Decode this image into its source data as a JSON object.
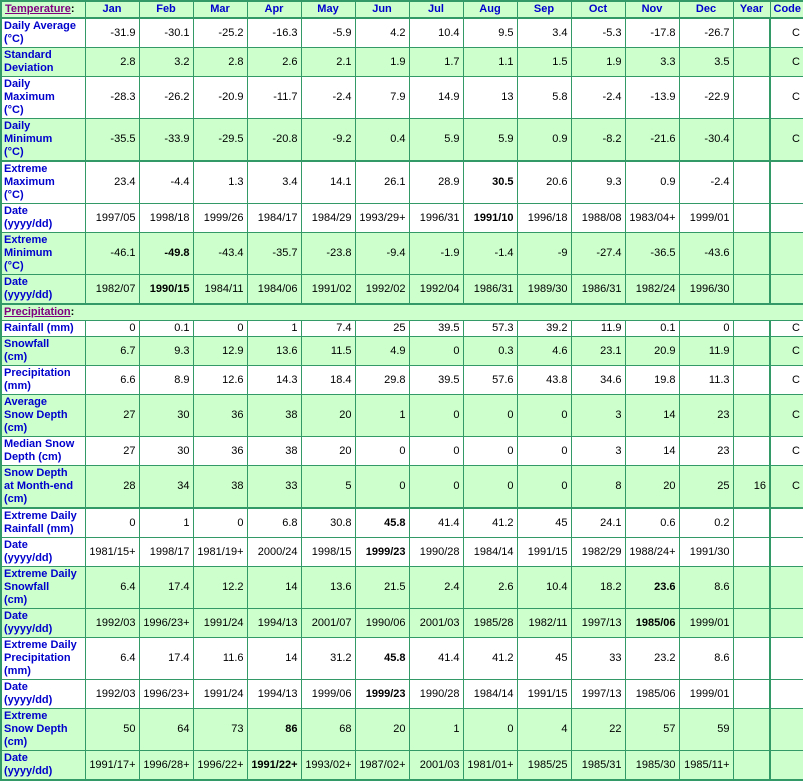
{
  "sections": {
    "temperature": {
      "title": "Temperature"
    },
    "precipitation": {
      "title": "Precipitation"
    },
    "colon": ":"
  },
  "header": {
    "months": [
      "Jan",
      "Feb",
      "Mar",
      "Apr",
      "May",
      "Jun",
      "Jul",
      "Aug",
      "Sep",
      "Oct",
      "Nov",
      "Dec"
    ],
    "year": "Year",
    "code": "Code"
  },
  "colors": {
    "cell_green": "#ccffcc",
    "border_green": "#339966",
    "label_blue": "#0000cc",
    "section_purple": "#800080"
  },
  "rows": [
    {
      "label": "Daily Average\n(°C)",
      "values": [
        "-31.9",
        "-30.1",
        "-25.2",
        "-16.3",
        "-5.9",
        "4.2",
        "10.4",
        "9.5",
        "3.4",
        "-5.3",
        "-17.8",
        "-26.7"
      ],
      "year": "",
      "code": "C",
      "shade": "w",
      "bold_col": -1,
      "thick_top": false
    },
    {
      "label": "Standard\nDeviation",
      "values": [
        "2.8",
        "3.2",
        "2.8",
        "2.6",
        "2.1",
        "1.9",
        "1.7",
        "1.1",
        "1.5",
        "1.9",
        "3.3",
        "3.5"
      ],
      "year": "",
      "code": "C",
      "shade": "g",
      "bold_col": -1,
      "thick_top": false
    },
    {
      "label": "Daily\nMaximum\n(°C)",
      "values": [
        "-28.3",
        "-26.2",
        "-20.9",
        "-11.7",
        "-2.4",
        "7.9",
        "14.9",
        "13",
        "5.8",
        "-2.4",
        "-13.9",
        "-22.9"
      ],
      "year": "",
      "code": "C",
      "shade": "w",
      "bold_col": -1,
      "thick_top": false
    },
    {
      "label": "Daily\nMinimum\n(°C)",
      "values": [
        "-35.5",
        "-33.9",
        "-29.5",
        "-20.8",
        "-9.2",
        "0.4",
        "5.9",
        "5.9",
        "0.9",
        "-8.2",
        "-21.6",
        "-30.4"
      ],
      "year": "",
      "code": "C",
      "shade": "g",
      "bold_col": -1,
      "thick_top": false
    },
    {
      "label": "Extreme\nMaximum\n(°C)",
      "values": [
        "23.4",
        "-4.4",
        "1.3",
        "3.4",
        "14.1",
        "26.1",
        "28.9",
        "30.5",
        "20.6",
        "9.3",
        "0.9",
        "-2.4"
      ],
      "year": "",
      "code": "",
      "shade": "w",
      "bold_col": 7,
      "thick_top": true
    },
    {
      "label": "Date\n(yyyy/dd)",
      "values": [
        "1997/05",
        "1998/18",
        "1999/26",
        "1984/17",
        "1984/29",
        "1993/29+",
        "1996/31",
        "1991/10",
        "1996/18",
        "1988/08",
        "1983/04+",
        "1999/01"
      ],
      "year": "",
      "code": "",
      "shade": "w",
      "bold_col": 7,
      "thick_top": false
    },
    {
      "label": "Extreme\nMinimum\n(°C)",
      "values": [
        "-46.1",
        "-49.8",
        "-43.4",
        "-35.7",
        "-23.8",
        "-9.4",
        "-1.9",
        "-1.4",
        "-9",
        "-27.4",
        "-36.5",
        "-43.6"
      ],
      "year": "",
      "code": "",
      "shade": "g",
      "bold_col": 1,
      "thick_top": false
    },
    {
      "label": "Date\n(yyyy/dd)",
      "values": [
        "1982/07",
        "1990/15",
        "1984/11",
        "1984/06",
        "1991/02",
        "1992/02",
        "1992/04",
        "1986/31",
        "1989/30",
        "1986/31",
        "1982/24",
        "1996/30"
      ],
      "year": "",
      "code": "",
      "shade": "g",
      "bold_col": 1,
      "thick_top": false
    },
    {
      "type": "section_header",
      "section": "precipitation"
    },
    {
      "label": "Rainfall (mm)",
      "values": [
        "0",
        "0.1",
        "0",
        "1",
        "7.4",
        "25",
        "39.5",
        "57.3",
        "39.2",
        "11.9",
        "0.1",
        "0"
      ],
      "year": "",
      "code": "C",
      "shade": "w",
      "bold_col": -1,
      "thick_top": false
    },
    {
      "label": "Snowfall\n(cm)",
      "values": [
        "6.7",
        "9.3",
        "12.9",
        "13.6",
        "11.5",
        "4.9",
        "0",
        "0.3",
        "4.6",
        "23.1",
        "20.9",
        "11.9"
      ],
      "year": "",
      "code": "C",
      "shade": "g",
      "bold_col": -1,
      "thick_top": false
    },
    {
      "label": "Precipitation\n(mm)",
      "values": [
        "6.6",
        "8.9",
        "12.6",
        "14.3",
        "18.4",
        "29.8",
        "39.5",
        "57.6",
        "43.8",
        "34.6",
        "19.8",
        "11.3"
      ],
      "year": "",
      "code": "C",
      "shade": "w",
      "bold_col": -1,
      "thick_top": false
    },
    {
      "label": "Average\nSnow Depth\n(cm)",
      "values": [
        "27",
        "30",
        "36",
        "38",
        "20",
        "1",
        "0",
        "0",
        "0",
        "3",
        "14",
        "23"
      ],
      "year": "",
      "code": "C",
      "shade": "g",
      "bold_col": -1,
      "thick_top": false
    },
    {
      "label": "Median Snow\nDepth (cm)",
      "values": [
        "27",
        "30",
        "36",
        "38",
        "20",
        "0",
        "0",
        "0",
        "0",
        "3",
        "14",
        "23"
      ],
      "year": "",
      "code": "C",
      "shade": "w",
      "bold_col": -1,
      "thick_top": false
    },
    {
      "label": "Snow Depth\nat Month-end\n(cm)",
      "values": [
        "28",
        "34",
        "38",
        "33",
        "5",
        "0",
        "0",
        "0",
        "0",
        "8",
        "20",
        "25"
      ],
      "year": "16",
      "code": "C",
      "shade": "g",
      "bold_col": -1,
      "thick_top": false
    },
    {
      "label": "Extreme Daily\nRainfall (mm)",
      "values": [
        "0",
        "1",
        "0",
        "6.8",
        "30.8",
        "45.8",
        "41.4",
        "41.2",
        "45",
        "24.1",
        "0.6",
        "0.2"
      ],
      "year": "",
      "code": "",
      "shade": "w",
      "bold_col": 5,
      "thick_top": true
    },
    {
      "label": "Date\n(yyyy/dd)",
      "values": [
        "1981/15+",
        "1998/17",
        "1981/19+",
        "2000/24",
        "1998/15",
        "1999/23",
        "1990/28",
        "1984/14",
        "1991/15",
        "1982/29",
        "1988/24+",
        "1991/30"
      ],
      "year": "",
      "code": "",
      "shade": "w",
      "bold_col": 5,
      "thick_top": false
    },
    {
      "label": "Extreme Daily\nSnowfall\n(cm)",
      "values": [
        "6.4",
        "17.4",
        "12.2",
        "14",
        "13.6",
        "21.5",
        "2.4",
        "2.6",
        "10.4",
        "18.2",
        "23.6",
        "8.6"
      ],
      "year": "",
      "code": "",
      "shade": "g",
      "bold_col": 10,
      "thick_top": false
    },
    {
      "label": "Date\n(yyyy/dd)",
      "values": [
        "1992/03",
        "1996/23+",
        "1991/24",
        "1994/13",
        "2001/07",
        "1990/06",
        "2001/03",
        "1985/28",
        "1982/11",
        "1997/13",
        "1985/06",
        "1999/01"
      ],
      "year": "",
      "code": "",
      "shade": "g",
      "bold_col": 10,
      "thick_top": false
    },
    {
      "label": "Extreme Daily\nPrecipitation\n(mm)",
      "values": [
        "6.4",
        "17.4",
        "11.6",
        "14",
        "31.2",
        "45.8",
        "41.4",
        "41.2",
        "45",
        "33",
        "23.2",
        "8.6"
      ],
      "year": "",
      "code": "",
      "shade": "w",
      "bold_col": 5,
      "thick_top": false
    },
    {
      "label": "Date\n(yyyy/dd)",
      "values": [
        "1992/03",
        "1996/23+",
        "1991/24",
        "1994/13",
        "1999/06",
        "1999/23",
        "1990/28",
        "1984/14",
        "1991/15",
        "1997/13",
        "1985/06",
        "1999/01"
      ],
      "year": "",
      "code": "",
      "shade": "w",
      "bold_col": 5,
      "thick_top": false
    },
    {
      "label": "Extreme\nSnow Depth\n(cm)",
      "values": [
        "50",
        "64",
        "73",
        "86",
        "68",
        "20",
        "1",
        "0",
        "4",
        "22",
        "57",
        "59"
      ],
      "year": "",
      "code": "",
      "shade": "g",
      "bold_col": 3,
      "thick_top": false
    },
    {
      "label": "Date\n(yyyy/dd)",
      "values": [
        "1991/17+",
        "1996/28+",
        "1996/22+",
        "1991/22+",
        "1993/02+",
        "1987/02+",
        "2001/03",
        "1981/01+",
        "1985/25",
        "1985/31",
        "1985/30",
        "1985/11+"
      ],
      "year": "",
      "code": "",
      "shade": "g",
      "bold_col": 3,
      "thick_top": false
    }
  ]
}
